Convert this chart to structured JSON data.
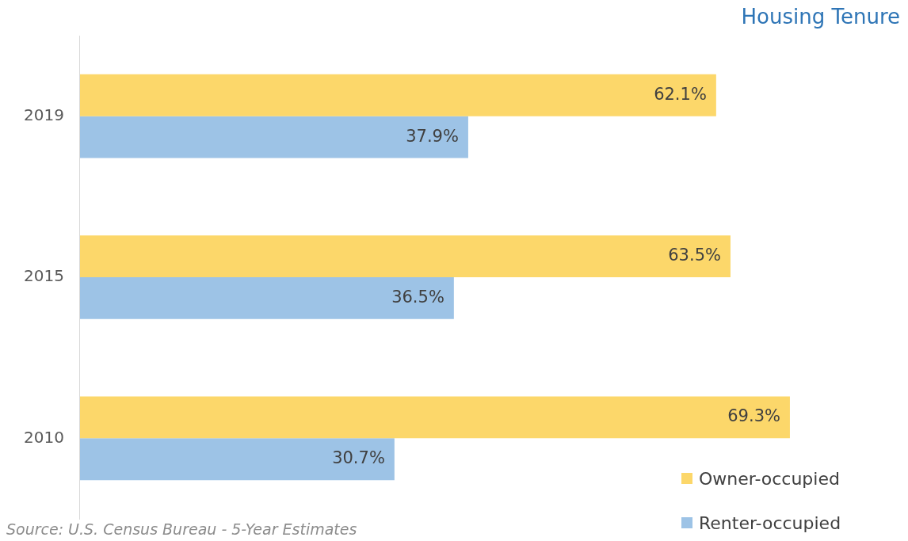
{
  "chart_data": {
    "type": "bar",
    "orientation": "horizontal",
    "title": "Housing Tenure",
    "categories": [
      "2019",
      "2015",
      "2010"
    ],
    "series": [
      {
        "name": "Owner-occupied",
        "color": "#fcd76a",
        "values": [
          62.1,
          63.5,
          69.3
        ],
        "value_labels": [
          "62.1%",
          "63.5%",
          "69.3%"
        ]
      },
      {
        "name": "Renter-occupied",
        "color": "#9dc3e6",
        "values": [
          37.9,
          36.5,
          30.7
        ],
        "value_labels": [
          "37.9%",
          "36.5%",
          "30.7%"
        ]
      }
    ],
    "legend": "bottom right",
    "annotations": [
      "Source: U.S. Census Bureau - 5-Year Estimates"
    ]
  }
}
